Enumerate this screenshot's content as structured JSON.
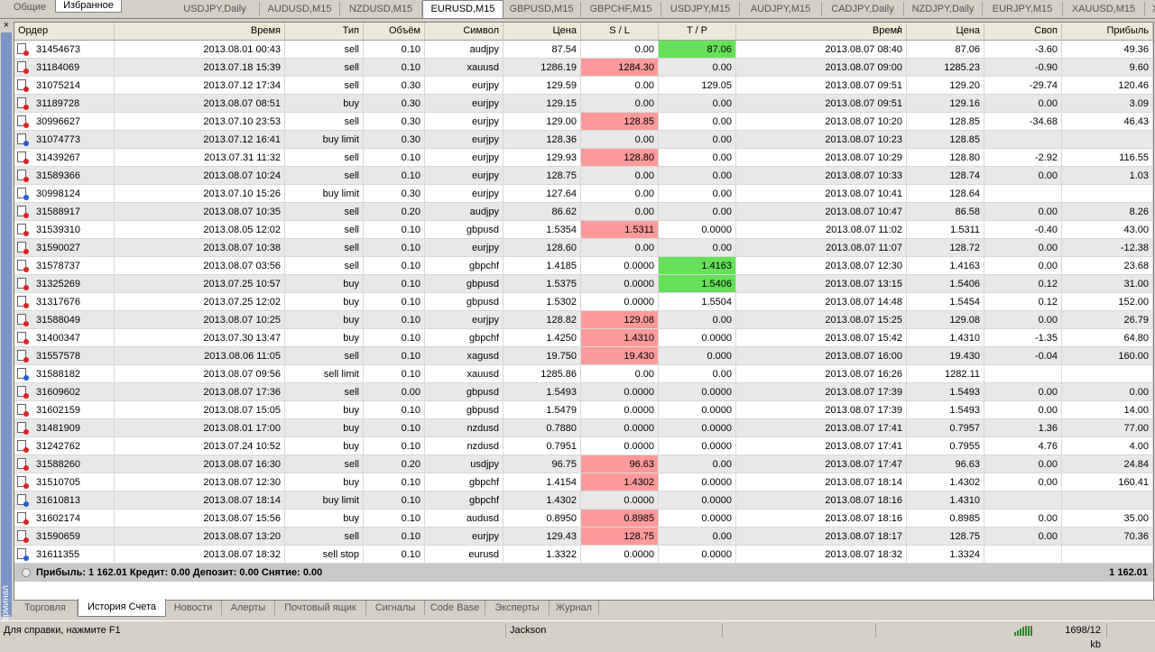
{
  "top_left_tabs": [
    "Общие",
    "Избранное"
  ],
  "chart_tabs": [
    "USDJPY,Daily",
    "AUDUSD,M15",
    "NZDUSD,M15",
    "EURUSD,M15",
    "GBPUSD,M15",
    "GBPCHF,M15",
    "USDJPY,M15",
    "AUDJPY,M15",
    "CADJPY,Daily",
    "NZDJPY,Daily",
    "EURJPY,M15",
    "XAUUSD,M15",
    "X"
  ],
  "active_chart_tab": "EURUSD,M15",
  "side": {
    "close": "×",
    "label": "Терминал"
  },
  "columns": [
    "Ордер",
    "Время",
    "Тип",
    "Объём",
    "Символ",
    "Цена",
    "S / L",
    "T / P",
    "Время",
    "Цена",
    "Своп",
    "Прибыль"
  ],
  "sort_indicator": "/",
  "orders": [
    {
      "order": "31454673",
      "open_time": "2013.08.01 00:43",
      "type": "sell",
      "volume": "0.10",
      "symbol": "audjpy",
      "open_price": "87.54",
      "sl": "0.00",
      "tp": "87.06",
      "close_time": "2013.08.07 08:40",
      "close_price": "87.06",
      "swap": "-3.60",
      "profit": "49.36",
      "hl": "tp"
    },
    {
      "order": "31184069",
      "open_time": "2013.07.18 15:39",
      "type": "sell",
      "volume": "0.10",
      "symbol": "xauusd",
      "open_price": "1286.19",
      "sl": "1284.30",
      "tp": "0.00",
      "close_time": "2013.08.07 09:00",
      "close_price": "1285.23",
      "swap": "-0.90",
      "profit": "9.60",
      "hl": "sl"
    },
    {
      "order": "31075214",
      "open_time": "2013.07.12 17:34",
      "type": "sell",
      "volume": "0.30",
      "symbol": "eurjpy",
      "open_price": "129.59",
      "sl": "0.00",
      "tp": "129.05",
      "close_time": "2013.08.07 09:51",
      "close_price": "129.20",
      "swap": "-29.74",
      "profit": "120.46",
      "hl": ""
    },
    {
      "order": "31189728",
      "open_time": "2013.08.07 08:51",
      "type": "buy",
      "volume": "0.30",
      "symbol": "eurjpy",
      "open_price": "129.15",
      "sl": "0.00",
      "tp": "0.00",
      "close_time": "2013.08.07 09:51",
      "close_price": "129.16",
      "swap": "0.00",
      "profit": "3.09",
      "hl": ""
    },
    {
      "order": "30996627",
      "open_time": "2013.07.10 23:53",
      "type": "sell",
      "volume": "0.30",
      "symbol": "eurjpy",
      "open_price": "129.00",
      "sl": "128.85",
      "tp": "0.00",
      "close_time": "2013.08.07 10:20",
      "close_price": "128.85",
      "swap": "-34.68",
      "profit": "46.43",
      "hl": "sl"
    },
    {
      "order": "31074773",
      "open_time": "2013.07.12 16:41",
      "type": "buy limit",
      "volume": "0.30",
      "symbol": "eurjpy",
      "open_price": "128.36",
      "sl": "0.00",
      "tp": "0.00",
      "close_time": "2013.08.07 10:23",
      "close_price": "128.85",
      "swap": "",
      "profit": "",
      "hl": ""
    },
    {
      "order": "31439267",
      "open_time": "2013.07.31 11:32",
      "type": "sell",
      "volume": "0.10",
      "symbol": "eurjpy",
      "open_price": "129.93",
      "sl": "128.80",
      "tp": "0.00",
      "close_time": "2013.08.07 10:29",
      "close_price": "128.80",
      "swap": "-2.92",
      "profit": "116.55",
      "hl": "sl"
    },
    {
      "order": "31589366",
      "open_time": "2013.08.07 10:24",
      "type": "sell",
      "volume": "0.10",
      "symbol": "eurjpy",
      "open_price": "128.75",
      "sl": "0.00",
      "tp": "0.00",
      "close_time": "2013.08.07 10:33",
      "close_price": "128.74",
      "swap": "0.00",
      "profit": "1.03",
      "hl": ""
    },
    {
      "order": "30998124",
      "open_time": "2013.07.10 15:26",
      "type": "buy limit",
      "volume": "0.30",
      "symbol": "eurjpy",
      "open_price": "127.64",
      "sl": "0.00",
      "tp": "0.00",
      "close_time": "2013.08.07 10:41",
      "close_price": "128.64",
      "swap": "",
      "profit": "",
      "hl": ""
    },
    {
      "order": "31588917",
      "open_time": "2013.08.07 10:35",
      "type": "sell",
      "volume": "0.20",
      "symbol": "audjpy",
      "open_price": "86.62",
      "sl": "0.00",
      "tp": "0.00",
      "close_time": "2013.08.07 10:47",
      "close_price": "86.58",
      "swap": "0.00",
      "profit": "8.26",
      "hl": ""
    },
    {
      "order": "31539310",
      "open_time": "2013.08.05 12:02",
      "type": "sell",
      "volume": "0.10",
      "symbol": "gbpusd",
      "open_price": "1.5354",
      "sl": "1.5311",
      "tp": "0.0000",
      "close_time": "2013.08.07 11:02",
      "close_price": "1.5311",
      "swap": "-0.40",
      "profit": "43.00",
      "hl": "sl"
    },
    {
      "order": "31590027",
      "open_time": "2013.08.07 10:38",
      "type": "sell",
      "volume": "0.10",
      "symbol": "eurjpy",
      "open_price": "128.60",
      "sl": "0.00",
      "tp": "0.00",
      "close_time": "2013.08.07 11:07",
      "close_price": "128.72",
      "swap": "0.00",
      "profit": "-12.38",
      "hl": ""
    },
    {
      "order": "31578737",
      "open_time": "2013.08.07 03:56",
      "type": "sell",
      "volume": "0.10",
      "symbol": "gbpchf",
      "open_price": "1.4185",
      "sl": "0.0000",
      "tp": "1.4163",
      "close_time": "2013.08.07 12:30",
      "close_price": "1.4163",
      "swap": "0.00",
      "profit": "23.68",
      "hl": "tp"
    },
    {
      "order": "31325269",
      "open_time": "2013.07.25 10:57",
      "type": "buy",
      "volume": "0.10",
      "symbol": "gbpusd",
      "open_price": "1.5375",
      "sl": "0.0000",
      "tp": "1.5406",
      "close_time": "2013.08.07 13:15",
      "close_price": "1.5406",
      "swap": "0.12",
      "profit": "31.00",
      "hl": "tp"
    },
    {
      "order": "31317676",
      "open_time": "2013.07.25 12:02",
      "type": "buy",
      "volume": "0.10",
      "symbol": "gbpusd",
      "open_price": "1.5302",
      "sl": "0.0000",
      "tp": "1.5504",
      "close_time": "2013.08.07 14:48",
      "close_price": "1.5454",
      "swap": "0.12",
      "profit": "152.00",
      "hl": ""
    },
    {
      "order": "31588049",
      "open_time": "2013.08.07 10:25",
      "type": "buy",
      "volume": "0.10",
      "symbol": "eurjpy",
      "open_price": "128.82",
      "sl": "129.08",
      "tp": "0.00",
      "close_time": "2013.08.07 15:25",
      "close_price": "129.08",
      "swap": "0.00",
      "profit": "26.79",
      "hl": "sl"
    },
    {
      "order": "31400347",
      "open_time": "2013.07.30 13:47",
      "type": "buy",
      "volume": "0.10",
      "symbol": "gbpchf",
      "open_price": "1.4250",
      "sl": "1.4310",
      "tp": "0.0000",
      "close_time": "2013.08.07 15:42",
      "close_price": "1.4310",
      "swap": "-1.35",
      "profit": "64.80",
      "hl": "sl"
    },
    {
      "order": "31557578",
      "open_time": "2013.08.06 11:05",
      "type": "sell",
      "volume": "0.10",
      "symbol": "xagusd",
      "open_price": "19.750",
      "sl": "19.430",
      "tp": "0.000",
      "close_time": "2013.08.07 16:00",
      "close_price": "19.430",
      "swap": "-0.04",
      "profit": "160.00",
      "hl": "sl"
    },
    {
      "order": "31588182",
      "open_time": "2013.08.07 09:56",
      "type": "sell limit",
      "volume": "0.10",
      "symbol": "xauusd",
      "open_price": "1285.86",
      "sl": "0.00",
      "tp": "0.00",
      "close_time": "2013.08.07 16:26",
      "close_price": "1282.11",
      "swap": "",
      "profit": "",
      "hl": ""
    },
    {
      "order": "31609602",
      "open_time": "2013.08.07 17:36",
      "type": "sell",
      "volume": "0.00",
      "symbol": "gbpusd",
      "open_price": "1.5493",
      "sl": "0.0000",
      "tp": "0.0000",
      "close_time": "2013.08.07 17:39",
      "close_price": "1.5493",
      "swap": "0.00",
      "profit": "0.00",
      "hl": ""
    },
    {
      "order": "31602159",
      "open_time": "2013.08.07 15:05",
      "type": "buy",
      "volume": "0.10",
      "symbol": "gbpusd",
      "open_price": "1.5479",
      "sl": "0.0000",
      "tp": "0.0000",
      "close_time": "2013.08.07 17:39",
      "close_price": "1.5493",
      "swap": "0.00",
      "profit": "14.00",
      "hl": ""
    },
    {
      "order": "31481909",
      "open_time": "2013.08.01 17:00",
      "type": "buy",
      "volume": "0.10",
      "symbol": "nzdusd",
      "open_price": "0.7880",
      "sl": "0.0000",
      "tp": "0.0000",
      "close_time": "2013.08.07 17:41",
      "close_price": "0.7957",
      "swap": "1.36",
      "profit": "77.00",
      "hl": ""
    },
    {
      "order": "31242762",
      "open_time": "2013.07.24 10:52",
      "type": "buy",
      "volume": "0.10",
      "symbol": "nzdusd",
      "open_price": "0.7951",
      "sl": "0.0000",
      "tp": "0.0000",
      "close_time": "2013.08.07 17:41",
      "close_price": "0.7955",
      "swap": "4.76",
      "profit": "4.00",
      "hl": ""
    },
    {
      "order": "31588260",
      "open_time": "2013.08.07 16:30",
      "type": "sell",
      "volume": "0.20",
      "symbol": "usdjpy",
      "open_price": "96.75",
      "sl": "96.63",
      "tp": "0.00",
      "close_time": "2013.08.07 17:47",
      "close_price": "96.63",
      "swap": "0.00",
      "profit": "24.84",
      "hl": "sl"
    },
    {
      "order": "31510705",
      "open_time": "2013.08.07 12:30",
      "type": "buy",
      "volume": "0.10",
      "symbol": "gbpchf",
      "open_price": "1.4154",
      "sl": "1.4302",
      "tp": "0.0000",
      "close_time": "2013.08.07 18:14",
      "close_price": "1.4302",
      "swap": "0.00",
      "profit": "160.41",
      "hl": "sl"
    },
    {
      "order": "31610813",
      "open_time": "2013.08.07 18:14",
      "type": "buy limit",
      "volume": "0.10",
      "symbol": "gbpchf",
      "open_price": "1.4302",
      "sl": "0.0000",
      "tp": "0.0000",
      "close_time": "2013.08.07 18:16",
      "close_price": "1.4310",
      "swap": "",
      "profit": "",
      "hl": ""
    },
    {
      "order": "31602174",
      "open_time": "2013.08.07 15:56",
      "type": "buy",
      "volume": "0.10",
      "symbol": "audusd",
      "open_price": "0.8950",
      "sl": "0.8985",
      "tp": "0.0000",
      "close_time": "2013.08.07 18:16",
      "close_price": "0.8985",
      "swap": "0.00",
      "profit": "35.00",
      "hl": "sl"
    },
    {
      "order": "31590659",
      "open_time": "2013.08.07 13:20",
      "type": "sell",
      "volume": "0.10",
      "symbol": "eurjpy",
      "open_price": "129.43",
      "sl": "128.75",
      "tp": "0.00",
      "close_time": "2013.08.07 18:17",
      "close_price": "128.75",
      "swap": "0.00",
      "profit": "70.36",
      "hl": "sl"
    },
    {
      "order": "31611355",
      "open_time": "2013.08.07 18:32",
      "type": "sell stop",
      "volume": "0.10",
      "symbol": "eurusd",
      "open_price": "1.3322",
      "sl": "0.0000",
      "tp": "0.0000",
      "close_time": "2013.08.07 18:32",
      "close_price": "1.3324",
      "swap": "",
      "profit": "",
      "hl": ""
    }
  ],
  "summary": {
    "text": "Прибыль: 1 162.01  Кредит: 0.00  Депозит: 0.00  Снятие: 0.00",
    "total": "1 162.01"
  },
  "bottom_tabs": [
    "Торговля",
    "История Счета",
    "Новости",
    "Алерты",
    "Почтовый ящик",
    "Сигналы",
    "Code Base",
    "Эксперты",
    "Журнал"
  ],
  "active_bottom_tab": "История Счета",
  "status": {
    "help": "Для справки, нажмите F1",
    "profile": "Jackson",
    "traffic": "1698/12 kb"
  },
  "colors": {
    "sl_highlight": "#ff9a9a",
    "tp_highlight": "#66e05a",
    "terminal_strip": "#7b94c8"
  }
}
